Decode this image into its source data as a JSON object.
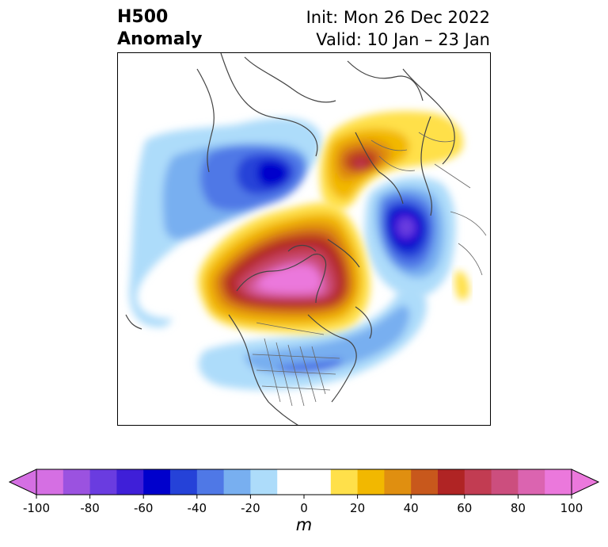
{
  "title": {
    "left_line1": "H500",
    "left_line2": "Anomaly",
    "right_line1": "Init: Mon 26 Dec 2022",
    "right_line2": "Valid: 10 Jan – 23 Jan"
  },
  "colorbar": {
    "unit": "m",
    "tick_labels": [
      "-100",
      "-80",
      "-60",
      "-40",
      "-20",
      "0",
      "20",
      "40",
      "60",
      "80",
      "100"
    ],
    "colors": [
      "#d56fe3",
      "#9b52e0",
      "#6a3ce0",
      "#3f1fd8",
      "#0000cc",
      "#2542d8",
      "#4f78e6",
      "#78aff0",
      "#addcfa",
      "#ffffff",
      "#ffffff",
      "#ffe04a",
      "#f2b800",
      "#e08f10",
      "#c8581c",
      "#b02424",
      "#c23c52",
      "#cc4e7e",
      "#db64b0",
      "#eb78dc"
    ],
    "extend": "both"
  },
  "map": {
    "projection": "north-polar-stereographic",
    "features": [
      "H500 anomaly shading",
      "coastlines",
      "country borders",
      "US state borders"
    ]
  }
}
